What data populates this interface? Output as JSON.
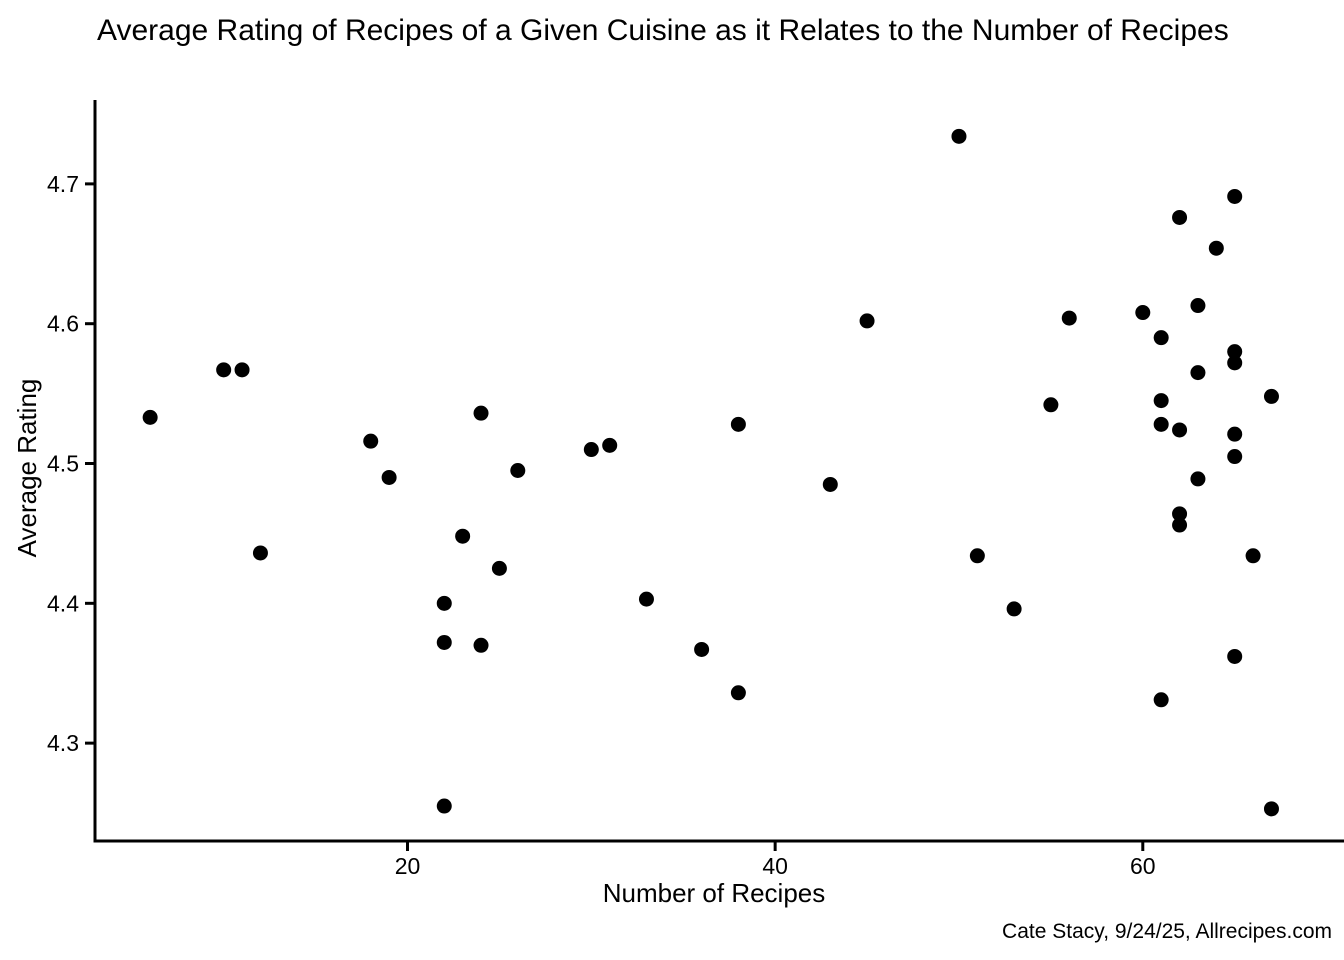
{
  "page": {
    "title": "Average Rating of Recipes of a Given Cuisine as it Relates to the Number of Recipes",
    "attribution": "Cate Stacy, 9/24/25, Allrecipes.com"
  },
  "chart_data": {
    "type": "scatter",
    "title": "Average Rating of Recipes of a Given Cuisine as it Relates to the Number of Recipes",
    "xlabel": "Number of Recipes",
    "ylabel": "Average Rating",
    "x_ticks": [
      20,
      40,
      60
    ],
    "y_ticks": [
      4.3,
      4.4,
      4.5,
      4.6,
      4.7
    ],
    "xlim": [
      3,
      71
    ],
    "ylim": [
      4.23,
      4.76
    ],
    "grid": false,
    "legend": "none",
    "point_color": "#000000",
    "axis_color": "#000000",
    "background_color": "#FFFFFF",
    "points": [
      {
        "x": 6,
        "y": 4.533
      },
      {
        "x": 10,
        "y": 4.567
      },
      {
        "x": 11,
        "y": 4.567
      },
      {
        "x": 12,
        "y": 4.436
      },
      {
        "x": 18,
        "y": 4.516
      },
      {
        "x": 19,
        "y": 4.49
      },
      {
        "x": 22,
        "y": 4.4
      },
      {
        "x": 22,
        "y": 4.372
      },
      {
        "x": 22,
        "y": 4.255
      },
      {
        "x": 23,
        "y": 4.448
      },
      {
        "x": 24,
        "y": 4.536
      },
      {
        "x": 24,
        "y": 4.37
      },
      {
        "x": 25,
        "y": 4.425
      },
      {
        "x": 26,
        "y": 4.495
      },
      {
        "x": 30,
        "y": 4.51
      },
      {
        "x": 31,
        "y": 4.513
      },
      {
        "x": 33,
        "y": 4.403
      },
      {
        "x": 36,
        "y": 4.367
      },
      {
        "x": 38,
        "y": 4.528
      },
      {
        "x": 38,
        "y": 4.336
      },
      {
        "x": 43,
        "y": 4.485
      },
      {
        "x": 45,
        "y": 4.602
      },
      {
        "x": 50,
        "y": 4.734
      },
      {
        "x": 51,
        "y": 4.434
      },
      {
        "x": 53,
        "y": 4.396
      },
      {
        "x": 55,
        "y": 4.542
      },
      {
        "x": 56,
        "y": 4.604
      },
      {
        "x": 60,
        "y": 4.608
      },
      {
        "x": 61,
        "y": 4.59
      },
      {
        "x": 61,
        "y": 4.545
      },
      {
        "x": 61,
        "y": 4.528
      },
      {
        "x": 61,
        "y": 4.331
      },
      {
        "x": 62,
        "y": 4.676
      },
      {
        "x": 62,
        "y": 4.524
      },
      {
        "x": 62,
        "y": 4.464
      },
      {
        "x": 62,
        "y": 4.456
      },
      {
        "x": 63,
        "y": 4.613
      },
      {
        "x": 63,
        "y": 4.565
      },
      {
        "x": 63,
        "y": 4.489
      },
      {
        "x": 64,
        "y": 4.654
      },
      {
        "x": 65,
        "y": 4.691
      },
      {
        "x": 65,
        "y": 4.58
      },
      {
        "x": 65,
        "y": 4.572
      },
      {
        "x": 65,
        "y": 4.521
      },
      {
        "x": 65,
        "y": 4.505
      },
      {
        "x": 65,
        "y": 4.362
      },
      {
        "x": 66,
        "y": 4.434
      },
      {
        "x": 67,
        "y": 4.548
      },
      {
        "x": 67,
        "y": 4.253
      }
    ]
  }
}
